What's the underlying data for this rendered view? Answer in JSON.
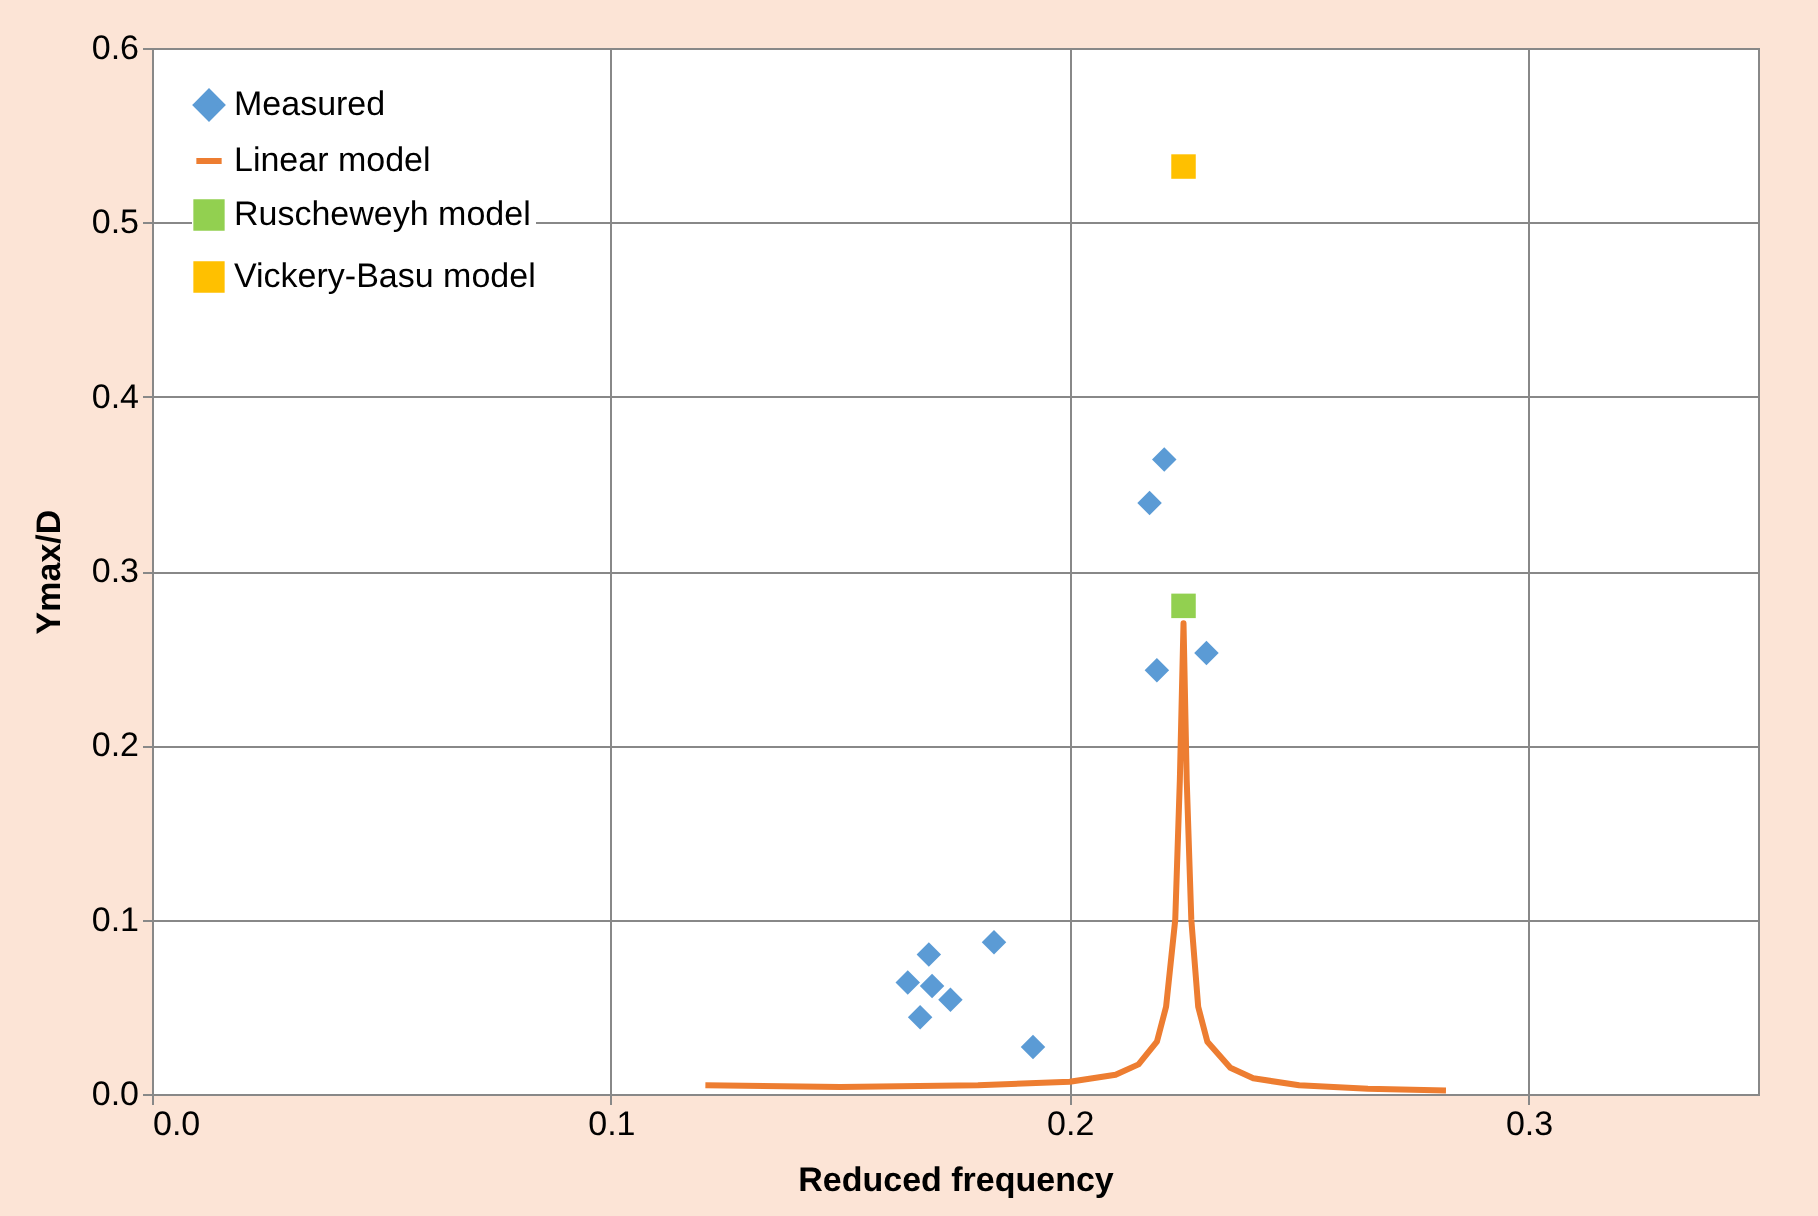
{
  "chart_data": {
    "type": "scatter",
    "xlabel": "Reduced frequency",
    "ylabel": "Ymax/D",
    "xlim": [
      0,
      0.35
    ],
    "ylim": [
      0,
      0.6
    ],
    "xticks": [
      {
        "value": 0,
        "label": "0.0"
      },
      {
        "value": 0.1,
        "label": "0.1"
      },
      {
        "value": 0.2,
        "label": "0.2"
      },
      {
        "value": 0.3,
        "label": "0.3"
      }
    ],
    "yticks": [
      {
        "value": 0,
        "label": "0.0"
      },
      {
        "value": 0.1,
        "label": "0.1"
      },
      {
        "value": 0.2,
        "label": "0.2"
      },
      {
        "value": 0.3,
        "label": "0.3"
      },
      {
        "value": 0.4,
        "label": "0.4"
      },
      {
        "value": 0.5,
        "label": "0.5"
      },
      {
        "value": 0.6,
        "label": "0.6"
      }
    ],
    "grid": true,
    "legend": "top left",
    "series": [
      {
        "name": "Measured",
        "marker": "diamond",
        "color": "#5b9bd5",
        "x": [
          0.1647,
          0.1674,
          0.1693,
          0.17,
          0.174,
          0.1835,
          0.192,
          0.2174,
          0.2206,
          0.219,
          0.2298
        ],
        "values": [
          0.064,
          0.044,
          0.08,
          0.062,
          0.054,
          0.087,
          0.027,
          0.339,
          0.364,
          0.243,
          0.253
        ]
      },
      {
        "name": "Linear model",
        "type": "line",
        "line_style": "solid",
        "color": "#ed7d31",
        "x": [
          0.1206,
          0.15,
          0.18,
          0.2,
          0.21,
          0.215,
          0.219,
          0.221,
          0.223,
          0.224,
          0.2248,
          0.2255,
          0.2265,
          0.228,
          0.23,
          0.235,
          0.24,
          0.25,
          0.265,
          0.282
        ],
        "values": [
          0.005,
          0.004,
          0.005,
          0.007,
          0.011,
          0.017,
          0.03,
          0.05,
          0.1,
          0.18,
          0.27,
          0.18,
          0.1,
          0.05,
          0.03,
          0.015,
          0.009,
          0.005,
          0.003,
          0.002
        ]
      },
      {
        "name": "Ruscheweyh model",
        "marker": "square",
        "color": "#92d050",
        "x": [
          0.2248
        ],
        "values": [
          0.28
        ]
      },
      {
        "name": "Vickery-Basu model",
        "marker": "square",
        "color": "#ffc000",
        "x": [
          0.2248
        ],
        "values": [
          0.532
        ]
      }
    ]
  }
}
